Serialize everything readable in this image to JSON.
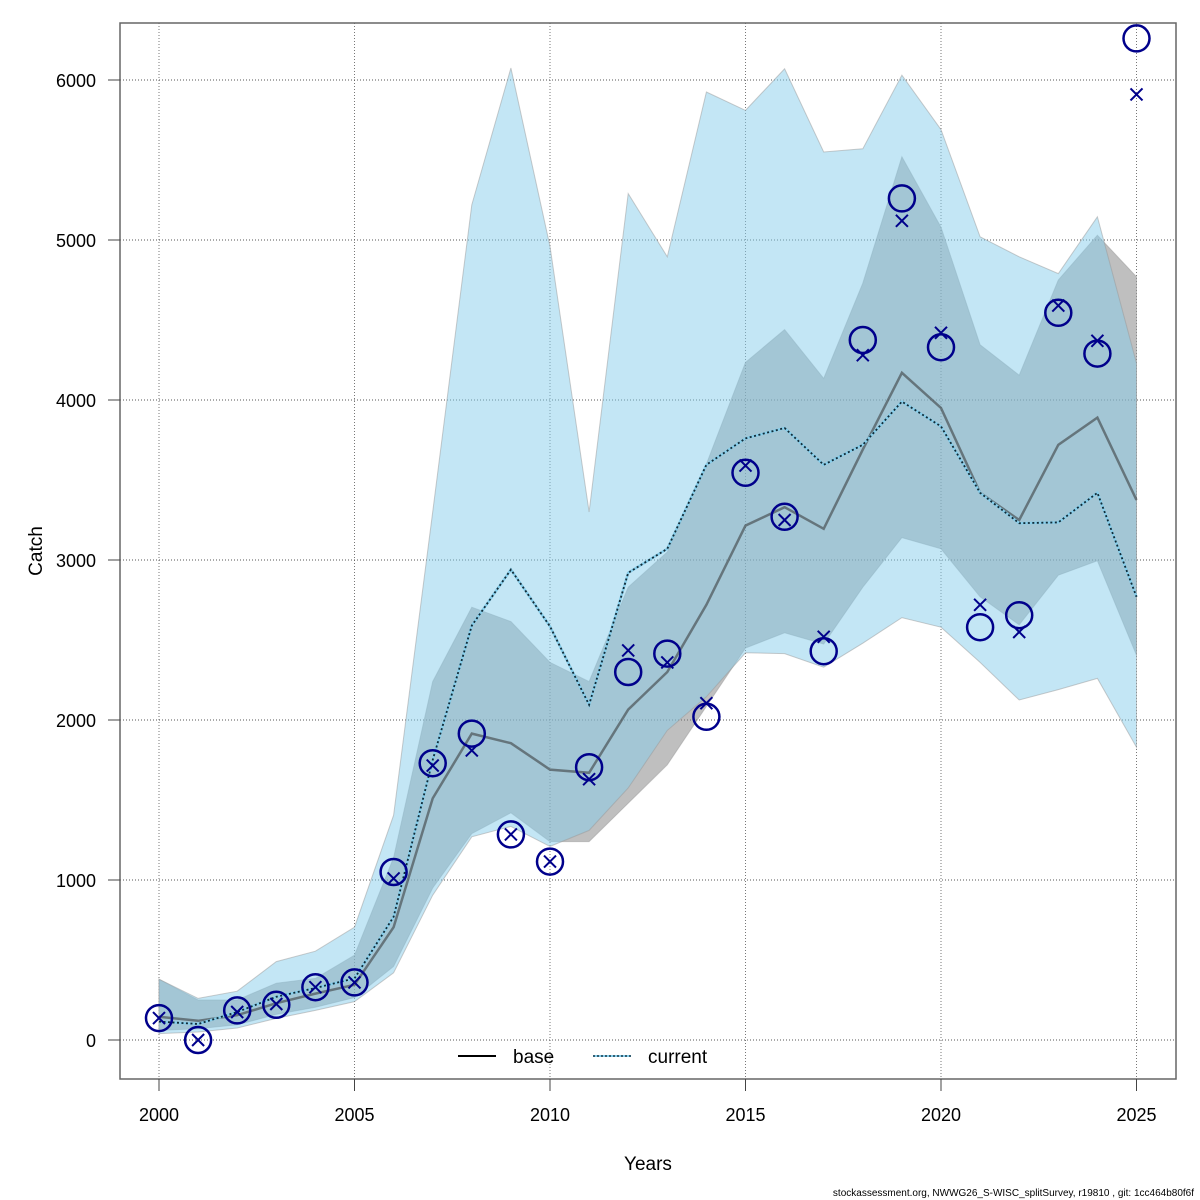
{
  "chart_data": {
    "type": "line",
    "title": "",
    "xlabel": "Years",
    "ylabel": "Catch",
    "xlim": [
      1999,
      2026
    ],
    "ylim": [
      -240,
      6400
    ],
    "grid": true,
    "xticks": [
      2000,
      2005,
      2010,
      2015,
      2020,
      2025
    ],
    "yticks": [
      0,
      1000,
      2000,
      3000,
      4000,
      5000,
      6000
    ],
    "x": [
      2000,
      2001,
      2002,
      2003,
      2004,
      2005,
      2006,
      2007,
      2008,
      2009,
      2010,
      2011,
      2012,
      2013,
      2014,
      2015,
      2016,
      2017,
      2018,
      2019,
      2020,
      2021,
      2022,
      2023,
      2024,
      2025
    ],
    "series": [
      {
        "name": "base",
        "line_style": "solid",
        "color": "#000000",
        "band_color": "#808080",
        "values": [
          145,
          120,
          155,
          230,
          290,
          345,
          705,
          1510,
          1915,
          1855,
          1690,
          1670,
          2065,
          2300,
          2720,
          3215,
          3330,
          3195,
          3690,
          4170,
          3950,
          3420,
          3250,
          3720,
          3890,
          3375
        ],
        "lower": [
          60,
          70,
          95,
          160,
          205,
          265,
          460,
          950,
          1290,
          1420,
          1240,
          1240,
          1480,
          1720,
          2085,
          2450,
          2545,
          2475,
          2830,
          3140,
          3070,
          2770,
          2595,
          2905,
          2995,
          2405
        ],
        "upper": [
          380,
          250,
          250,
          355,
          385,
          530,
          1140,
          2240,
          2705,
          2615,
          2360,
          2240,
          2830,
          3050,
          3600,
          4235,
          4440,
          4135,
          4730,
          5520,
          5080,
          4345,
          4155,
          4750,
          5030,
          4770
        ]
      },
      {
        "name": "current",
        "line_style": "dotted",
        "color": "#87ceeb",
        "band_color": "#87ceeb",
        "values": [
          115,
          100,
          175,
          270,
          325,
          385,
          770,
          1750,
          2590,
          2940,
          2585,
          2095,
          2920,
          3070,
          3595,
          3760,
          3825,
          3595,
          3720,
          3990,
          3835,
          3420,
          3230,
          3235,
          3420,
          2770
        ],
        "lower": [
          40,
          50,
          75,
          135,
          185,
          240,
          420,
          905,
          1270,
          1335,
          1210,
          1310,
          1575,
          1935,
          2145,
          2420,
          2415,
          2330,
          2480,
          2640,
          2580,
          2360,
          2125,
          2190,
          2260,
          1830
        ],
        "upper": [
          380,
          260,
          305,
          490,
          555,
          705,
          1405,
          3300,
          5220,
          6075,
          4960,
          3300,
          5290,
          4895,
          5925,
          5810,
          6070,
          5550,
          5570,
          6030,
          5690,
          5020,
          4895,
          4790,
          5145,
          4230
        ]
      }
    ],
    "points": {
      "observed_circles": [
        137,
        0,
        185,
        220,
        330,
        360,
        1050,
        1730,
        1915,
        1285,
        1115,
        1705,
        2300,
        2415,
        2020,
        3545,
        3270,
        2430,
        4375,
        5260,
        4330,
        2580,
        2655,
        4545,
        4290,
        6260
      ],
      "crosses": [
        137,
        0,
        175,
        225,
        330,
        360,
        1010,
        1715,
        1810,
        1285,
        1115,
        1630,
        2435,
        2360,
        2105,
        3590,
        3250,
        2520,
        4280,
        5120,
        4420,
        2720,
        2550,
        4590,
        4370,
        5910
      ],
      "color": "#00008b"
    },
    "legend": {
      "placement": "bottom-center",
      "entries": [
        {
          "label": "base",
          "style": "solid"
        },
        {
          "label": "current",
          "style": "dotted"
        }
      ]
    }
  },
  "footer": "stockassessment.org, NWWG26_S-WISC_splitSurvey, r19810 , git: 1cc464b80f6f"
}
